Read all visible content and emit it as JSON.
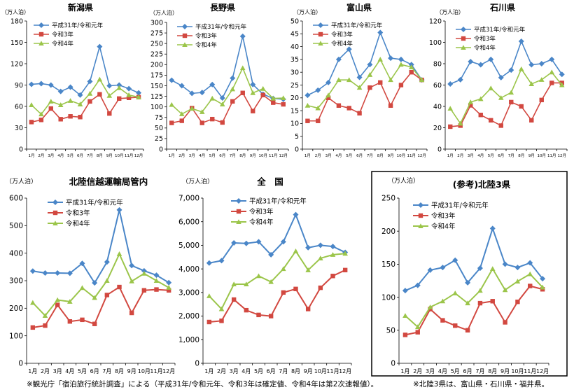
{
  "chart_data": [
    {
      "type": "line",
      "title": "新潟県",
      "ylabel": "（万人泊）",
      "categories": [
        "1月",
        "2月",
        "3月",
        "4月",
        "5月",
        "6月",
        "7月",
        "8月",
        "9月",
        "10月",
        "11月",
        "12月"
      ],
      "ylim": [
        0,
        180
      ],
      "yticks": [
        "0",
        "30",
        "60",
        "90",
        "120",
        "150",
        "180"
      ],
      "series": [
        {
          "name": "平成31年/令和元年",
          "values": [
            91,
            92,
            90,
            81,
            87,
            76,
            95,
            144,
            89,
            90,
            85,
            79
          ]
        },
        {
          "name": "令和3年",
          "values": [
            38,
            41,
            57,
            42,
            46,
            45,
            67,
            77,
            50,
            71,
            72,
            73
          ]
        },
        {
          "name": "令和4年",
          "values": [
            62,
            49,
            67,
            62,
            68,
            63,
            78,
            98,
            75,
            86,
            76,
            73
          ]
        }
      ]
    },
    {
      "type": "line",
      "title": "長野県",
      "ylabel": "（万人泊）",
      "categories": [
        "1月",
        "2月",
        "3月",
        "4月",
        "5月",
        "6月",
        "7月",
        "8月",
        "9月",
        "10月",
        "11月",
        "12月"
      ],
      "ylim": [
        0,
        300
      ],
      "yticks": [
        "0",
        "25",
        "50",
        "75",
        "100",
        "125",
        "150",
        "175",
        "200",
        "225",
        "250",
        "275",
        "300"
      ],
      "series": [
        {
          "name": "平成31年/令和元年",
          "values": [
            163,
            150,
            132,
            134,
            153,
            121,
            168,
            267,
            153,
            130,
            120,
            118
          ]
        },
        {
          "name": "令和3年",
          "values": [
            62,
            67,
            97,
            62,
            71,
            63,
            113,
            133,
            90,
            128,
            110,
            106
          ]
        },
        {
          "name": "令和4年",
          "values": [
            105,
            83,
            96,
            88,
            120,
            106,
            142,
            192,
            133,
            143,
            120,
            121
          ]
        }
      ]
    },
    {
      "type": "line",
      "title": "富山県",
      "ylabel": "（万人泊）",
      "categories": [
        "1月",
        "2月",
        "3月",
        "4月",
        "5月",
        "6月",
        "7月",
        "8月",
        "9月",
        "10月",
        "11月",
        "12月"
      ],
      "ylim": [
        0,
        50
      ],
      "yticks": [
        "0",
        "5",
        "10",
        "15",
        "20",
        "25",
        "30",
        "35",
        "40",
        "45",
        "50"
      ],
      "series": [
        {
          "name": "平成31年/令和元年",
          "values": [
            21,
            23,
            26,
            35,
            39,
            28,
            33,
            45.5,
            35.5,
            35,
            33,
            27
          ]
        },
        {
          "name": "令和3年",
          "values": [
            11,
            11,
            20,
            17,
            16,
            14,
            24,
            26,
            17,
            25,
            30,
            27
          ]
        },
        {
          "name": "令和4年",
          "values": [
            17,
            16,
            21,
            27,
            27,
            24,
            29,
            35,
            27,
            33,
            32,
            27
          ]
        }
      ]
    },
    {
      "type": "line",
      "title": "石川県",
      "ylabel": "（万人泊）",
      "categories": [
        "1月",
        "2月",
        "3月",
        "4月",
        "5月",
        "6月",
        "7月",
        "8月",
        "9月",
        "10月",
        "11月",
        "12月"
      ],
      "ylim": [
        0,
        120
      ],
      "yticks": [
        "0",
        "20",
        "40",
        "60",
        "80",
        "100",
        "120"
      ],
      "series": [
        {
          "name": "平成31年/令和元年",
          "values": [
            61,
            65,
            82,
            79,
            84,
            67,
            74,
            101,
            79,
            80,
            84,
            70
          ]
        },
        {
          "name": "令和3年",
          "values": [
            21,
            22,
            41,
            32,
            27,
            22,
            44,
            40,
            27,
            46,
            62,
            62
          ]
        },
        {
          "name": "令和4年",
          "values": [
            38,
            24,
            44,
            47,
            57,
            48,
            53,
            75,
            61,
            65,
            72,
            60
          ]
        }
      ]
    },
    {
      "type": "line",
      "title": "北陸信越運輸局管内",
      "ylabel": "（万人泊）",
      "categories": [
        "1月",
        "2月",
        "3月",
        "4月",
        "5月",
        "6月",
        "7月",
        "8月",
        "9月",
        "10月",
        "11月",
        "12月"
      ],
      "ylim": [
        0,
        600
      ],
      "yticks": [
        "0",
        "100",
        "200",
        "300",
        "400",
        "500",
        "600"
      ],
      "series": [
        {
          "name": "平成31年/令和元年",
          "values": [
            335,
            328,
            328,
            327,
            363,
            292,
            368,
            557,
            355,
            336,
            320,
            293
          ]
        },
        {
          "name": "令和3年",
          "values": [
            130,
            137,
            212,
            152,
            158,
            143,
            248,
            277,
            183,
            265,
            268,
            265
          ]
        },
        {
          "name": "令和4年",
          "values": [
            220,
            173,
            230,
            224,
            274,
            238,
            300,
            397,
            298,
            326,
            300,
            275
          ]
        }
      ]
    },
    {
      "type": "line",
      "title": "全　国",
      "ylabel": "（万人泊）",
      "categories": [
        "1月",
        "2月",
        "3月",
        "4月",
        "5月",
        "6月",
        "7月",
        "8月",
        "9月",
        "10月",
        "11月",
        "12月"
      ],
      "ylim": [
        0,
        7000
      ],
      "yticks": [
        "0",
        "1,000",
        "2,000",
        "3,000",
        "4,000",
        "5,000",
        "6,000",
        "7,000"
      ],
      "series": [
        {
          "name": "平成31年/令和元年",
          "values": [
            4250,
            4350,
            5100,
            5080,
            5150,
            4600,
            5150,
            6300,
            4900,
            5000,
            4950,
            4700
          ]
        },
        {
          "name": "令和3年",
          "values": [
            1750,
            1800,
            2700,
            2250,
            2050,
            2000,
            3000,
            3150,
            2300,
            3200,
            3700,
            3950
          ]
        },
        {
          "name": "令和4年",
          "values": [
            2850,
            2300,
            3350,
            3350,
            3700,
            3450,
            4000,
            4750,
            3950,
            4450,
            4600,
            4650
          ]
        }
      ]
    },
    {
      "type": "line",
      "title": "(参考)北陸3県",
      "ylabel": "（万人泊）",
      "categories": [
        "1月",
        "2月",
        "3月",
        "4月",
        "5月",
        "6月",
        "7月",
        "8月",
        "9月",
        "10月",
        "11月",
        "12月"
      ],
      "ylim": [
        0,
        250
      ],
      "yticks": [
        "0",
        "50",
        "100",
        "150",
        "200",
        "250"
      ],
      "series": [
        {
          "name": "平成31年/令和元年",
          "values": [
            110,
            118,
            141,
            145,
            156,
            122,
            144,
            204,
            150,
            145,
            152,
            128
          ]
        },
        {
          "name": "令和3年",
          "values": [
            43,
            47,
            82,
            65,
            57,
            50,
            91,
            94,
            62,
            93,
            117,
            112
          ]
        },
        {
          "name": "令和4年",
          "values": [
            72,
            55,
            85,
            94,
            106,
            91,
            110,
            143,
            111,
            124,
            135,
            115
          ]
        }
      ]
    }
  ],
  "colors": {
    "series": [
      "#4a86c8",
      "#d24840",
      "#9bc54a"
    ]
  },
  "footnotes": {
    "left": "※観光庁「宿泊旅行統計調査」による（平成31年/令和元年、令和3年は確定値、令和4年は第2次速報値）。",
    "right": "※北陸3県は、富山県・石川県・福井県。"
  }
}
